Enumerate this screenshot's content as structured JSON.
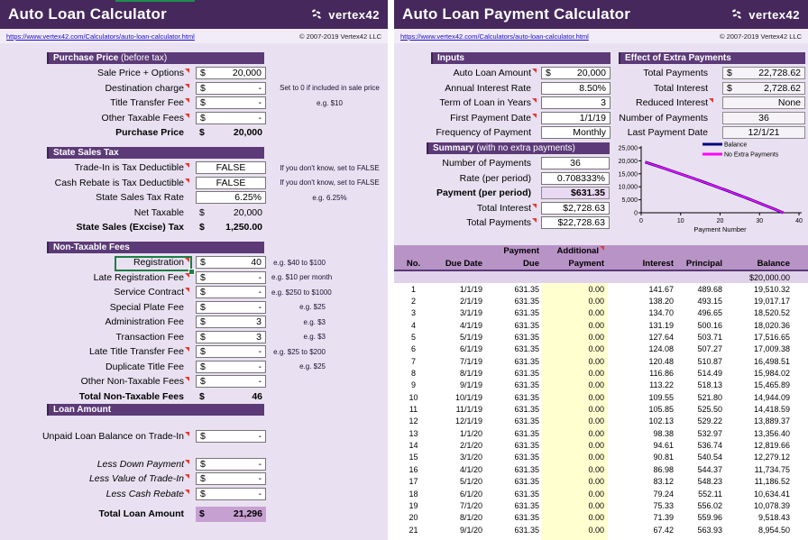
{
  "brand": {
    "logo_text": "vertex42",
    "url": "https://www.vertex42.com/Calculators/auto-loan-calculator.html",
    "copyright": "© 2007-2019 Vertex42 LLC"
  },
  "colors": {
    "header_purple": "#46285c",
    "section_purple": "#5c3a78",
    "table_header_purple": "#b893c6",
    "highlight_purple": "#c7a0d2",
    "input_yellow": "#ffffd0",
    "comment_red": "#e53935",
    "selection_green": "#1b7e43",
    "balance_line": "#000080",
    "no_extra_line": "#ff00ff"
  },
  "left_panel": {
    "title": "Auto Loan Calculator",
    "sections": [
      {
        "title": "Purchase Price",
        "suffix": " (before tax)",
        "rows": [
          {
            "label": "Sale Price + Options",
            "marker": true,
            "prefix": "$",
            "value": "20,000",
            "box": "input"
          },
          {
            "label": "Destination charge",
            "marker": true,
            "prefix": "$",
            "value": "-",
            "box": "input",
            "note": "Set to 0 if included in sale price",
            "note_wide": true
          },
          {
            "label": "Title Transfer Fee",
            "marker": true,
            "prefix": "$",
            "value": "-",
            "box": "input",
            "note": "e.g. $10",
            "note_wide": true
          },
          {
            "label": "Other Taxable Fees",
            "marker": true,
            "prefix": "$",
            "value": "-",
            "box": "input"
          },
          {
            "label": "Purchase Price",
            "bold": true,
            "prefix": "$",
            "value": "20,000",
            "box": "none"
          }
        ]
      },
      {
        "title": "State Sales Tax",
        "suffix": "",
        "rows": [
          {
            "label": "Trade-In is Tax Deductible",
            "marker": true,
            "value": "FALSE",
            "align": "center",
            "box": "input",
            "note": "If you don't know, set to FALSE",
            "note_wide": true
          },
          {
            "label": "Cash Rebate is Tax Deductible",
            "marker": true,
            "value": "FALSE",
            "align": "center",
            "box": "input",
            "note": "If you don't know, set to FALSE",
            "note_wide": true
          },
          {
            "label": "State Sales Tax Rate",
            "value": "6.25%",
            "box": "input",
            "note": "e.g. 6.25%",
            "note_wide": true
          },
          {
            "label": "Net Taxable",
            "prefix": "$",
            "value": "20,000",
            "box": "none"
          },
          {
            "label": "State Sales (Excise) Tax",
            "bold": true,
            "prefix": "$",
            "value": "1,250.00",
            "box": "none"
          }
        ]
      },
      {
        "title": "Non-Taxable Fees",
        "suffix": "",
        "rows": [
          {
            "label": "Registration",
            "marker": true,
            "selected": true,
            "prefix": "$",
            "value": "40",
            "box": "input",
            "note": "e.g. $40 to $100"
          },
          {
            "label": "Late Registration Fee",
            "marker": true,
            "prefix": "$",
            "value": "-",
            "box": "input",
            "note": "e.g. $10 per month"
          },
          {
            "label": "Service Contract",
            "marker": true,
            "prefix": "$",
            "value": "-",
            "box": "input",
            "note": "e.g. $250 to $1000"
          },
          {
            "label": "Special Plate Fee",
            "prefix": "$",
            "value": "-",
            "box": "input",
            "note": "e.g. $25"
          },
          {
            "label": "Administration Fee",
            "prefix": "$",
            "value": "3",
            "box": "input",
            "note": "e.g. $3"
          },
          {
            "label": "Transaction Fee",
            "prefix": "$",
            "value": "3",
            "box": "input",
            "note": "e.g. $3"
          },
          {
            "label": "Late Title Transfer Fee",
            "marker": true,
            "prefix": "$",
            "value": "-",
            "box": "input",
            "note": "e.g. $25 to $200"
          },
          {
            "label": "Duplicate Title Fee",
            "prefix": "$",
            "value": "-",
            "box": "input",
            "note": "e.g. $25"
          },
          {
            "label": "Other Non-Taxable Fees",
            "marker": true,
            "prefix": "$",
            "value": "-",
            "box": "input"
          },
          {
            "label": "Total Non-Taxable Fees",
            "bold": true,
            "prefix": "$",
            "value": "46",
            "box": "none"
          }
        ]
      },
      {
        "title": "Loan Amount",
        "suffix": "",
        "rows": [
          {
            "spacer": "m"
          },
          {
            "label": "Unpaid Loan Balance on Trade-In",
            "marker": true,
            "prefix": "$",
            "value": "-",
            "box": "input"
          },
          {
            "spacer": "l"
          },
          {
            "label": "Less Down Payment",
            "marker": true,
            "italic": true,
            "prefix": "$",
            "value": "-",
            "box": "input"
          },
          {
            "label": "Less Value of Trade-In",
            "marker": true,
            "italic": true,
            "prefix": "$",
            "value": "-",
            "box": "input"
          },
          {
            "label": "Less Cash Rebate",
            "marker": true,
            "italic": true,
            "prefix": "$",
            "value": "-",
            "box": "input"
          },
          {
            "spacer": "s"
          },
          {
            "label": "Total Loan Amount",
            "bold": true,
            "prefix": "$",
            "value": "21,296",
            "box": "purple"
          }
        ]
      }
    ]
  },
  "right_panel": {
    "title": "Auto Loan Payment Calculator",
    "inputs": {
      "title": "Inputs",
      "suffix": "",
      "rows": [
        {
          "label": "Auto Loan Amount",
          "marker": true,
          "prefix": "$",
          "value": "20,000",
          "box": "input"
        },
        {
          "label": "Annual Interest Rate",
          "value": "8.50%",
          "box": "input"
        },
        {
          "label": "Term of Loan in Years",
          "marker": true,
          "value": "3",
          "box": "input"
        },
        {
          "label": "First Payment Date",
          "marker": true,
          "value": "1/1/19",
          "box": "input"
        },
        {
          "label": "Frequency of Payment",
          "value": "Monthly",
          "box": "input"
        }
      ]
    },
    "effect": {
      "title": "Effect of Extra Payments",
      "suffix": "",
      "rows": [
        {
          "label": "Total Payments",
          "prefix": "$",
          "value": "22,728.62",
          "box": "calc"
        },
        {
          "label": "Total Interest",
          "prefix": "$",
          "value": "2,728.62",
          "box": "calc"
        },
        {
          "label": "Reduced Interest",
          "marker": true,
          "value": "None",
          "box": "calc"
        },
        {
          "label": "Number of Payments",
          "value": "36",
          "align": "center",
          "box": "calc"
        },
        {
          "label": "Last Payment Date",
          "value": "12/1/21",
          "align": "center",
          "box": "calc"
        }
      ]
    },
    "summary": {
      "title": "Summary",
      "suffix": " (with no extra payments)",
      "rows": [
        {
          "label": "Number of Payments",
          "value": "36",
          "align": "center",
          "box": "input"
        },
        {
          "label": "Rate (per period)",
          "value": "0.708333%",
          "box": "input"
        },
        {
          "label": "Payment (per period)",
          "bold": true,
          "value": "$631.35",
          "box": "hl"
        },
        {
          "label": "Total Interest",
          "marker": true,
          "value": "$2,728.63",
          "box": "input"
        },
        {
          "label": "Total Payments",
          "marker": true,
          "value": "$22,728.63",
          "box": "input"
        }
      ]
    },
    "table": {
      "headers": {
        "no": "No.",
        "due_date": "Due Date",
        "payment_due_1": "Payment",
        "payment_due_2": "Due",
        "additional_1": "Additional",
        "additional_2": "Payment",
        "interest": "Interest",
        "principal": "Principal",
        "balance": "Balance"
      },
      "initial_balance": "$20,000.00",
      "rows": [
        [
          "1",
          "1/1/19",
          "631.35",
          "0.00",
          "141.67",
          "489.68",
          "19,510.32"
        ],
        [
          "2",
          "2/1/19",
          "631.35",
          "0.00",
          "138.20",
          "493.15",
          "19,017.17"
        ],
        [
          "3",
          "3/1/19",
          "631.35",
          "0.00",
          "134.70",
          "496.65",
          "18,520.52"
        ],
        [
          "4",
          "4/1/19",
          "631.35",
          "0.00",
          "131.19",
          "500.16",
          "18,020.36"
        ],
        [
          "5",
          "5/1/19",
          "631.35",
          "0.00",
          "127.64",
          "503.71",
          "17,516.65"
        ],
        [
          "6",
          "6/1/19",
          "631.35",
          "0.00",
          "124.08",
          "507.27",
          "17,009.38"
        ],
        [
          "7",
          "7/1/19",
          "631.35",
          "0.00",
          "120.48",
          "510.87",
          "16,498.51"
        ],
        [
          "8",
          "8/1/19",
          "631.35",
          "0.00",
          "116.86",
          "514.49",
          "15,984.02"
        ],
        [
          "9",
          "9/1/19",
          "631.35",
          "0.00",
          "113.22",
          "518.13",
          "15,465.89"
        ],
        [
          "10",
          "10/1/19",
          "631.35",
          "0.00",
          "109.55",
          "521.80",
          "14,944.09"
        ],
        [
          "11",
          "11/1/19",
          "631.35",
          "0.00",
          "105.85",
          "525.50",
          "14,418.59"
        ],
        [
          "12",
          "12/1/19",
          "631.35",
          "0.00",
          "102.13",
          "529.22",
          "13,889.37"
        ],
        [
          "13",
          "1/1/20",
          "631.35",
          "0.00",
          "98.38",
          "532.97",
          "13,356.40"
        ],
        [
          "14",
          "2/1/20",
          "631.35",
          "0.00",
          "94.61",
          "536.74",
          "12,819.66"
        ],
        [
          "15",
          "3/1/20",
          "631.35",
          "0.00",
          "90.81",
          "540.54",
          "12,279.12"
        ],
        [
          "16",
          "4/1/20",
          "631.35",
          "0.00",
          "86.98",
          "544.37",
          "11,734.75"
        ],
        [
          "17",
          "5/1/20",
          "631.35",
          "0.00",
          "83.12",
          "548.23",
          "11,186.52"
        ],
        [
          "18",
          "6/1/20",
          "631.35",
          "0.00",
          "79.24",
          "552.11",
          "10,634.41"
        ],
        [
          "19",
          "7/1/20",
          "631.35",
          "0.00",
          "75.33",
          "556.02",
          "10,078.39"
        ],
        [
          "20",
          "8/1/20",
          "631.35",
          "0.00",
          "71.39",
          "559.96",
          "9,518.43"
        ],
        [
          "21",
          "9/1/20",
          "631.35",
          "0.00",
          "67.42",
          "563.93",
          "8,954.50"
        ]
      ]
    }
  },
  "chart_data": {
    "type": "line",
    "title": "",
    "xlabel": "Payment Number",
    "ylabel": "",
    "xlim": [
      0,
      40
    ],
    "ylim": [
      0,
      25000
    ],
    "xticks": [
      0,
      10,
      20,
      30,
      40
    ],
    "yticks": [
      0,
      5000,
      10000,
      15000,
      20000,
      25000
    ],
    "grid": false,
    "legend_position": "top-right",
    "x": [
      1,
      2,
      3,
      4,
      5,
      6,
      7,
      8,
      9,
      10,
      11,
      12,
      13,
      14,
      15,
      16,
      17,
      18,
      19,
      20,
      21,
      22,
      23,
      24,
      25,
      26,
      27,
      28,
      29,
      30,
      31,
      32,
      33,
      34,
      35,
      36
    ],
    "series": [
      {
        "name": "Balance",
        "color": "#000080",
        "values": [
          19510,
          19017,
          18521,
          18020,
          17517,
          17009,
          16499,
          15984,
          15466,
          14944,
          14419,
          13889,
          13356,
          12820,
          12279,
          11735,
          11187,
          10634,
          10078,
          9518,
          8955,
          8387,
          7815,
          7239,
          6659,
          6074,
          5486,
          4894,
          4297,
          3696,
          3091,
          2481,
          1868,
          1249,
          627,
          0
        ]
      },
      {
        "name": "No Extra Payments",
        "color": "#ff00ff",
        "values": [
          19510,
          19017,
          18521,
          18020,
          17517,
          17009,
          16499,
          15984,
          15466,
          14944,
          14419,
          13889,
          13356,
          12820,
          12279,
          11735,
          11187,
          10634,
          10078,
          9518,
          8955,
          8387,
          7815,
          7239,
          6659,
          6074,
          5486,
          4894,
          4297,
          3696,
          3091,
          2481,
          1868,
          1249,
          627,
          0
        ]
      }
    ]
  }
}
